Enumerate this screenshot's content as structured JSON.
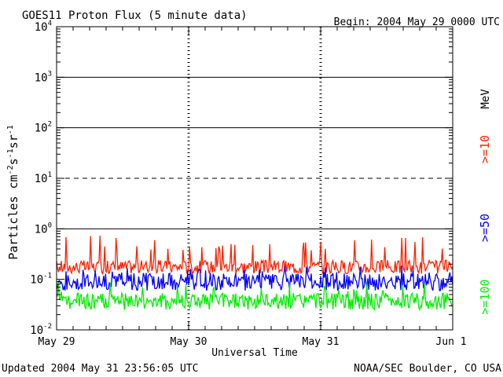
{
  "header": {
    "title": "GOES11 Proton Flux (5 minute data)",
    "begin": "Begin: 2004 May 29 0000 UTC"
  },
  "footer": {
    "updated": "Updated 2004 May 31 23:56:05 UTC",
    "credit": "NOAA/SEC Boulder, CO USA"
  },
  "chart_data": {
    "type": "line",
    "title": "GOES11 Proton Flux (5 minute data)",
    "xlabel": "Universal Time",
    "ylabel": "Particles cm-2s-1sr-1",
    "yscale": "log",
    "ylim": [
      0.01,
      10000
    ],
    "y_ticks": [
      {
        "value": 0.01,
        "base": "10",
        "exp": "-2"
      },
      {
        "value": 0.1,
        "base": "10",
        "exp": "-1"
      },
      {
        "value": 1,
        "base": "10",
        "exp": "0"
      },
      {
        "value": 10,
        "base": "10",
        "exp": "1"
      },
      {
        "value": 100,
        "base": "10",
        "exp": "2"
      },
      {
        "value": 1000,
        "base": "10",
        "exp": "3"
      },
      {
        "value": 10000,
        "base": "10",
        "exp": "4"
      }
    ],
    "x_ticks": [
      "May 29",
      "May 30",
      "May 31",
      "Jun 1"
    ],
    "xlim": [
      "2004-05-29",
      "2004-06-01"
    ],
    "threshold_lines": [
      1,
      100,
      1000
    ],
    "dashed_lines": [
      10
    ],
    "unit_label": "MeV",
    "legend_placement": "right",
    "series": [
      {
        "name": ">=10",
        "color": "#ff2000",
        "min": 0.085,
        "typical": 0.17,
        "max": 0.75
      },
      {
        "name": ">=50",
        "color": "#0000ff",
        "min": 0.035,
        "typical": 0.085,
        "max": 0.19
      },
      {
        "name": ">=100",
        "color": "#00ee00",
        "min": 0.015,
        "typical": 0.035,
        "max": 0.09
      }
    ]
  }
}
